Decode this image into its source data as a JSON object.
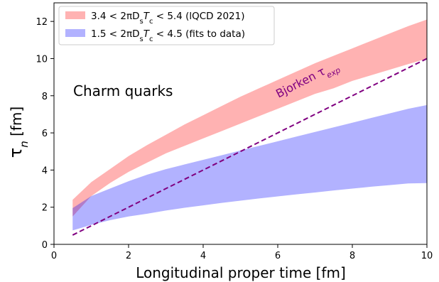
{
  "chart_data": {
    "type": "area",
    "xlabel": "Longitudinal proper time [fm]",
    "ylabel": "τn [fm]",
    "xlim": [
      0,
      10
    ],
    "ylim": [
      0,
      13
    ],
    "xticks": [
      0,
      2,
      4,
      6,
      8,
      10
    ],
    "yticks": [
      0,
      2,
      4,
      6,
      8,
      10,
      12
    ],
    "grid": false,
    "legend_position": "top-left",
    "annotation": "Charm quarks",
    "x": [
      0.5,
      1,
      1.5,
      2,
      2.5,
      3,
      3.5,
      4,
      4.5,
      5,
      5.5,
      6,
      6.5,
      7,
      7.5,
      8,
      8.5,
      9,
      9.5,
      10
    ],
    "bands": [
      {
        "name": "3.4 < 2πDsTc < 5.4 (lQCD 2021)",
        "color": "#ffb2b2",
        "lower": [
          1.5,
          2.6,
          3.3,
          3.9,
          4.4,
          4.9,
          5.3,
          5.7,
          6.1,
          6.5,
          6.9,
          7.3,
          7.7,
          8.1,
          8.4,
          8.8,
          9.1,
          9.4,
          9.7,
          10.0
        ],
        "upper": [
          2.4,
          3.35,
          4.05,
          4.75,
          5.35,
          5.9,
          6.45,
          6.95,
          7.45,
          7.95,
          8.4,
          8.85,
          9.3,
          9.75,
          10.15,
          10.55,
          10.95,
          11.35,
          11.75,
          12.1
        ]
      },
      {
        "name": "1.5 < 2πDsTc < 4.5 (fits to data)",
        "color": "#b2b2ff",
        "lower": [
          0.75,
          1.05,
          1.3,
          1.5,
          1.65,
          1.82,
          1.97,
          2.1,
          2.23,
          2.35,
          2.47,
          2.58,
          2.69,
          2.79,
          2.9,
          3.0,
          3.1,
          3.19,
          3.28,
          3.3
        ],
        "upper": [
          1.95,
          2.6,
          3.0,
          3.4,
          3.75,
          4.05,
          4.3,
          4.55,
          4.8,
          5.05,
          5.3,
          5.55,
          5.8,
          6.05,
          6.3,
          6.55,
          6.8,
          7.05,
          7.3,
          7.5
        ]
      }
    ],
    "line": {
      "name": "Bjorken τexp",
      "color": "#800080",
      "style": "dashed",
      "x": [
        0.5,
        10
      ],
      "y": [
        0.5,
        10
      ]
    }
  },
  "labels": {
    "annotation": "Charm quarks",
    "bjorken_main": "Bjorken τ",
    "bjorken_sub": "exp",
    "ylabel_main": "τ",
    "ylabel_sub": "n",
    "ylabel_unit": " [fm]",
    "xlabel": "Longitudinal proper time [fm]",
    "legend1_pre": "3.4 < 2πD",
    "legend1_s": "s",
    "legend1_T": "T",
    "legend1_c": "c",
    "legend1_post": " < 5.4 (lQCD 2021)",
    "legend2_pre": "1.5 < 2πD",
    "legend2_s": "s",
    "legend2_T": "T",
    "legend2_c": "c",
    "legend2_post": " < 4.5 (fits to data)"
  },
  "colors": {
    "lqcd_band": "#ffb2b2",
    "fits_band": "#b2b2ff",
    "bjorken_line": "#800080"
  }
}
